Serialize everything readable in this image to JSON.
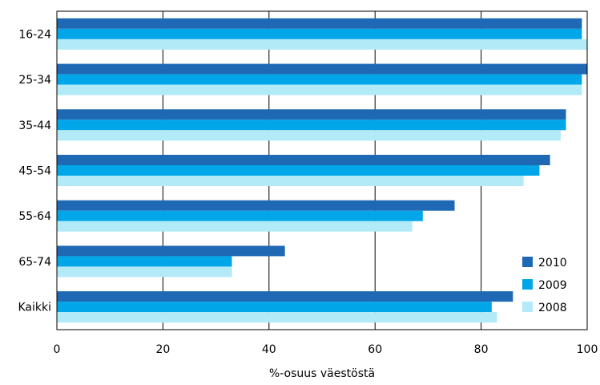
{
  "chart_data": {
    "type": "bar",
    "orientation": "horizontal",
    "title": "",
    "xlabel": "%-osuus väestöstä",
    "ylabel": "",
    "xlim": [
      0,
      100
    ],
    "xticks": [
      0,
      20,
      40,
      60,
      80,
      100
    ],
    "grid": true,
    "legend_position": "bottom-right",
    "categories": [
      "16-24",
      "25-34",
      "35-44",
      "45-54",
      "55-64",
      "65-74",
      "Kaikki"
    ],
    "series": [
      {
        "name": "2010",
        "color": "#1f68b4",
        "values": [
          99,
          100,
          96,
          93,
          75,
          43,
          86
        ]
      },
      {
        "name": "2009",
        "color": "#00a6e8",
        "values": [
          99,
          99,
          96,
          91,
          69,
          33,
          82
        ]
      },
      {
        "name": "2008",
        "color": "#b2eaf7",
        "values": [
          100,
          99,
          95,
          88,
          67,
          33,
          83
        ]
      }
    ]
  }
}
